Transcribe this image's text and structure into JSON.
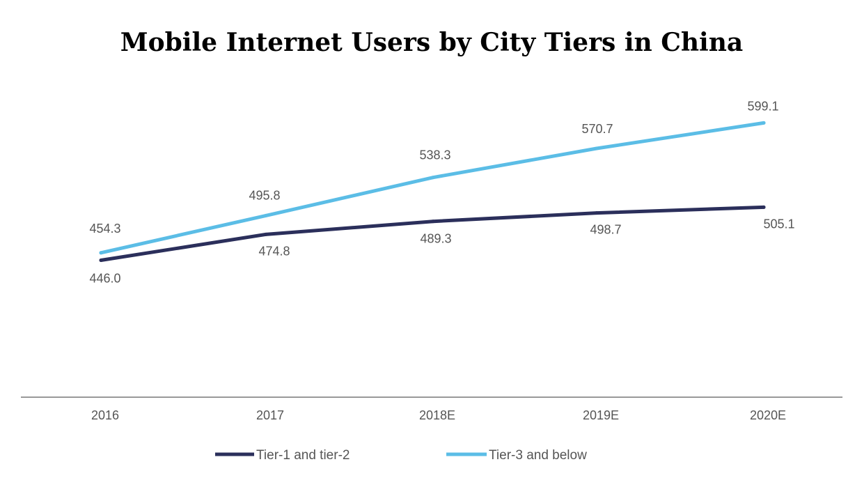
{
  "chart_data": {
    "type": "line",
    "title": "Mobile Internet Users by City Tiers in China",
    "xlabel": "",
    "ylabel": "",
    "categories": [
      "2016",
      "2017",
      "2018E",
      "2019E",
      "2020E"
    ],
    "ylim": [
      300,
      620
    ],
    "grid": false,
    "legend_position": "bottom",
    "series": [
      {
        "name": "Tier-1 and tier-2",
        "values": [
          446.0,
          474.8,
          489.3,
          498.7,
          505.1
        ],
        "labels": [
          "446.0",
          "474.8",
          "489.3",
          "498.7",
          "505.1"
        ],
        "color": "#2b2f5b"
      },
      {
        "name": "Tier-3 and below",
        "values": [
          454.3,
          495.8,
          538.3,
          570.7,
          599.1
        ],
        "labels": [
          "454.3",
          "495.8",
          "538.3",
          "570.7",
          "599.1"
        ],
        "color": "#5bbde6"
      }
    ],
    "axis_color": "#999999"
  }
}
